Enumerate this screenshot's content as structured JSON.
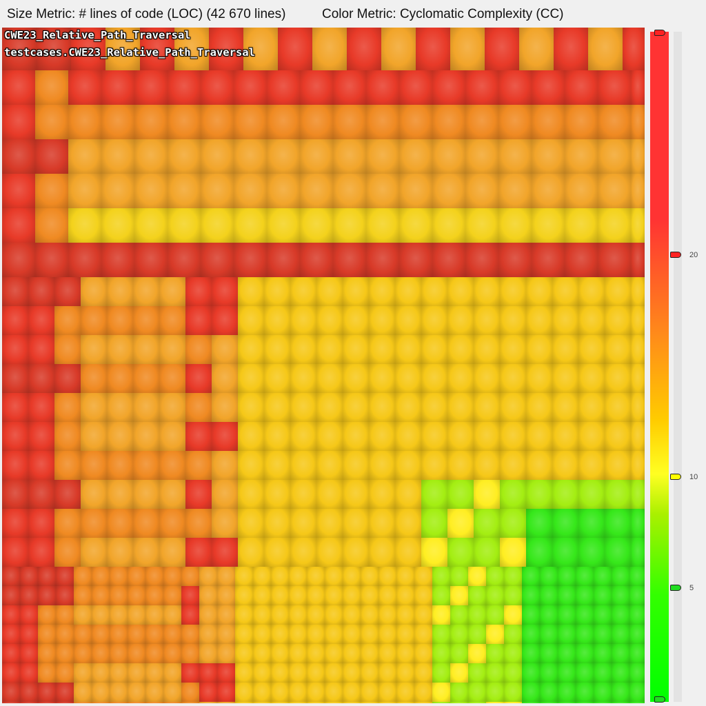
{
  "header": {
    "size_metric": "Size Metric: # lines of code (LOC) (42 670 lines)",
    "color_metric": "Color Metric: Cyclomatic Complexity (CC)"
  },
  "treemap": {
    "root_label": "CWE23_Relative_Path_Traversal",
    "package_label": "testcases.CWE23_Relative_Path_Traversal"
  },
  "legend": {
    "colors": {
      "high": "#ff3333",
      "mid": "#ffcc00",
      "low": "#00ff00"
    },
    "ticks": [
      {
        "label": "20",
        "color": "#ff2222"
      },
      {
        "label": "10",
        "color": "#ffff00"
      },
      {
        "label": "5",
        "color": "#22dd22"
      }
    ],
    "range_top_color": "#ff2222",
    "range_bottom_color": "#22dd22"
  }
}
